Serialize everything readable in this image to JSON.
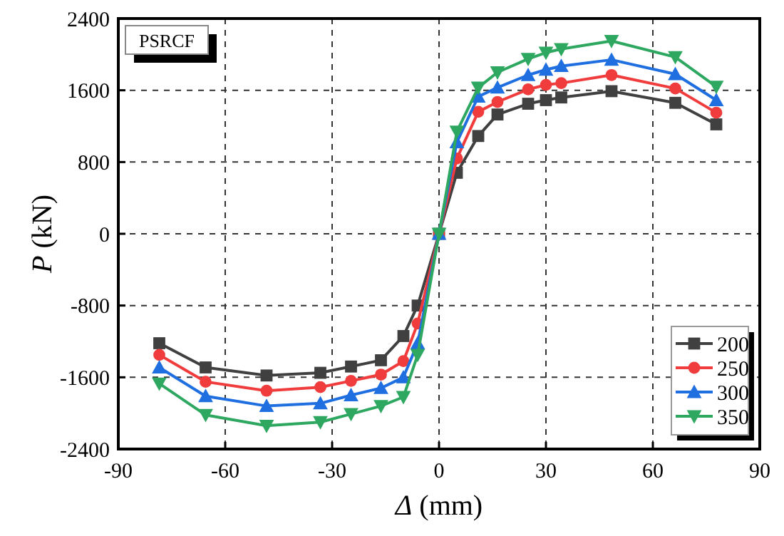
{
  "chart_data": {
    "type": "line",
    "xlabel": "Δ (mm)",
    "ylabel": "P (kN)",
    "annotations": [
      "PSRCF"
    ],
    "x": [
      -78.5,
      -65.5,
      -48.4,
      -33.3,
      -24.7,
      -16.3,
      -10,
      -6,
      0,
      5,
      11,
      16.4,
      25,
      30,
      34.3,
      48.4,
      66.3,
      77.8
    ],
    "xlim": [
      -90,
      90
    ],
    "xticks": [
      -90,
      -60,
      -30,
      0,
      30,
      60,
      90
    ],
    "ylim": [
      -2400,
      2400
    ],
    "yticks": [
      -2400,
      -1600,
      -800,
      0,
      800,
      1600,
      2400
    ],
    "grid": true,
    "legend": "bottom right",
    "line_style": "solid",
    "series": [
      {
        "name": "200",
        "color": "#404040",
        "marker": "square",
        "values": [
          -1220,
          -1490,
          -1580,
          -1550,
          -1480,
          -1410,
          -1140,
          -800,
          0,
          680,
          1090,
          1330,
          1450,
          1490,
          1520,
          1590,
          1460,
          1220
        ]
      },
      {
        "name": "250",
        "color": "#f03c3c",
        "marker": "circle",
        "values": [
          -1350,
          -1650,
          -1750,
          -1710,
          -1640,
          -1570,
          -1420,
          -1000,
          0,
          840,
          1360,
          1470,
          1610,
          1660,
          1680,
          1770,
          1620,
          1350
        ]
      },
      {
        "name": "300",
        "color": "#1f6fe0",
        "marker": "triangle",
        "values": [
          -1490,
          -1810,
          -1920,
          -1890,
          -1800,
          -1720,
          -1600,
          -1220,
          0,
          1020,
          1530,
          1630,
          1770,
          1830,
          1870,
          1940,
          1780,
          1490
        ]
      },
      {
        "name": "350",
        "color": "#2ea860",
        "marker": "triangle-down",
        "values": [
          -1670,
          -2020,
          -2140,
          -2100,
          -2010,
          -1920,
          -1820,
          -1350,
          0,
          1140,
          1630,
          1800,
          1950,
          2020,
          2060,
          2150,
          1970,
          1640
        ]
      }
    ]
  }
}
